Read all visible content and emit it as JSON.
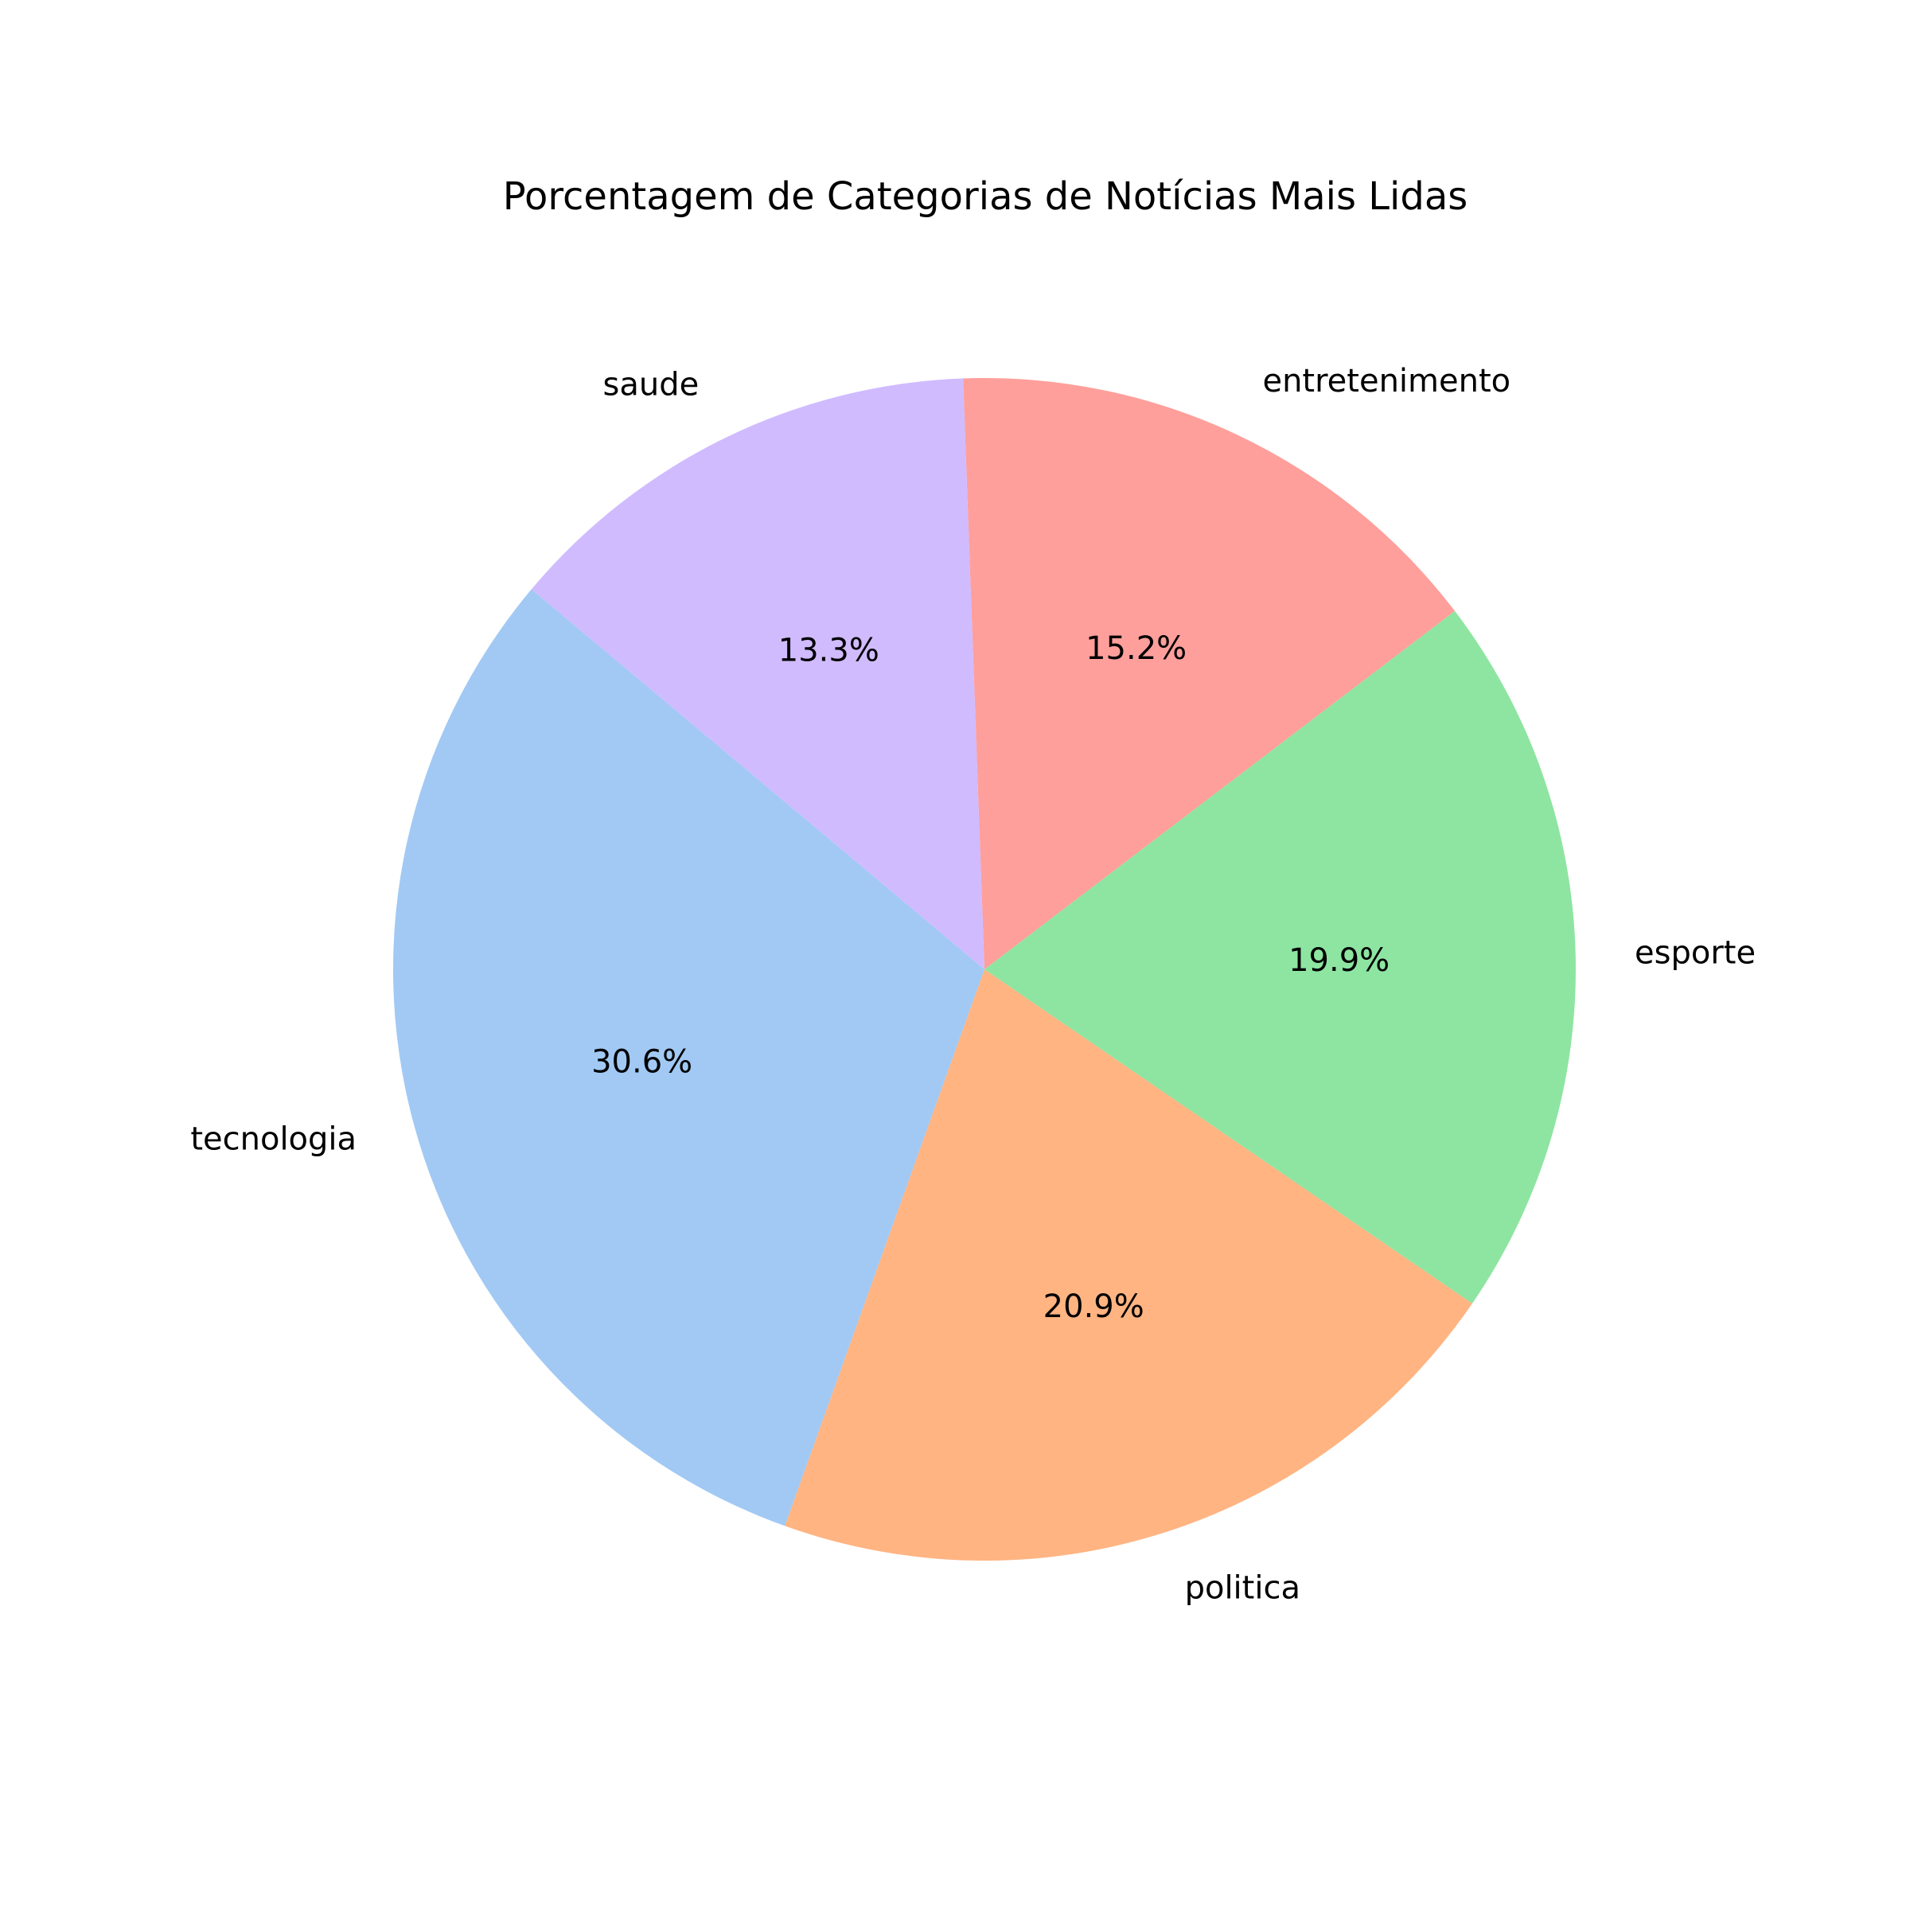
{
  "chart_data": {
    "type": "pie",
    "title": "Porcentagem de Categorias de Notícias Mais Lidas",
    "start_angle_deg": 140,
    "direction": "counterclockwise",
    "slices": [
      {
        "label": "tecnologia",
        "value": 30.6,
        "pct_label": "30.6%",
        "color": "#a1c9f4"
      },
      {
        "label": "politica",
        "value": 20.9,
        "pct_label": "20.9%",
        "color": "#ffb482"
      },
      {
        "label": "esporte",
        "value": 19.9,
        "pct_label": "19.9%",
        "color": "#8de5a1"
      },
      {
        "label": "entretenimento",
        "value": 15.2,
        "pct_label": "15.2%",
        "color": "#ff9f9b"
      },
      {
        "label": "saude",
        "value": 13.3,
        "pct_label": "13.3%",
        "color": "#d0bbff"
      }
    ]
  }
}
